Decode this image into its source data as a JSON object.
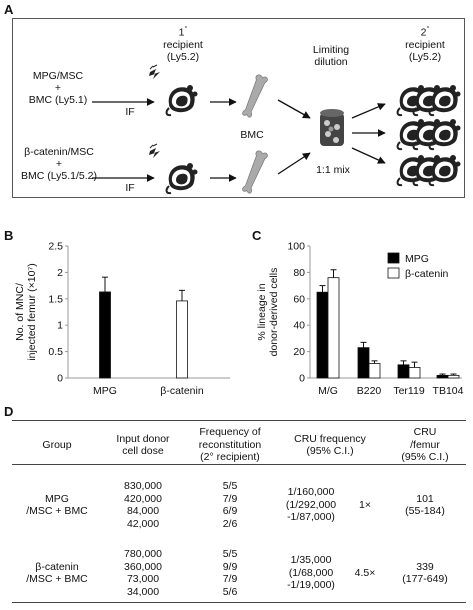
{
  "panels": {
    "a": "A",
    "b": "B",
    "c": "C",
    "d": "D"
  },
  "schematic": {
    "recipient1_title": "1° recipient (Ly5.2)",
    "recipient1_line1": "1",
    "recipient1_sup": "°",
    "recipient1_line2": "recipient",
    "recipient1_line3": "(Ly5.2)",
    "recipient2_line1": "2",
    "recipient2_sup": "°",
    "recipient2_line2": "recipient",
    "recipient2_line3": "(Ly5.2)",
    "limiting_line1": "Limiting",
    "limiting_line2": "dilution",
    "group1_line1": "MPG/MSC",
    "group1_line2": "+",
    "group1_line3": "BMC (Ly5.1)",
    "group2_line1": "β-catenin/MSC",
    "group2_line2": "+",
    "group2_line3": "BMC (Ly5.1/5.2)",
    "if_label": "IF",
    "bmc_label": "BMC",
    "mix_label": "1:1 mix"
  },
  "chart_data": [
    {
      "type": "bar",
      "panel": "B",
      "categories": [
        "MPG",
        "β-catenin"
      ],
      "values": [
        1.63,
        1.46
      ],
      "errors": [
        0.28,
        0.2
      ],
      "colors": [
        "#000000",
        "#ffffff"
      ],
      "ylabel_line1": "No. of MNC/",
      "ylabel_line2": "injected femur (×10⁷)",
      "ylim": [
        0,
        2.5
      ],
      "yticks": [
        "0",
        "0.5",
        "1",
        "1.5",
        "2",
        "2.5"
      ]
    },
    {
      "type": "bar",
      "panel": "C",
      "categories": [
        "M/G",
        "B220",
        "Ter119",
        "TB104"
      ],
      "series": [
        {
          "name": "MPG",
          "color": "#000000",
          "values": [
            65,
            23,
            10,
            2
          ],
          "errors": [
            5,
            4,
            3,
            1
          ]
        },
        {
          "name": "β-catenin",
          "color": "#ffffff",
          "values": [
            76,
            11,
            8,
            2
          ],
          "errors": [
            6,
            2,
            4,
            1
          ]
        }
      ],
      "ylabel_line1": "% lineage in",
      "ylabel_line2": "donor-derived cells",
      "ylim": [
        0,
        100
      ],
      "yticks": [
        "0",
        "20",
        "40",
        "60",
        "80",
        "100"
      ],
      "legend": "top-right"
    }
  ],
  "table": {
    "headers": {
      "group": "Group",
      "dose_line1": "Input donor",
      "dose_line2": "cell dose",
      "freq_line1": "Frequency of",
      "freq_line2": "reconstitution",
      "freq_line3": "(2° recipient)",
      "cru_line1": "CRU frequency",
      "cru_line2": "(95% C.I.)",
      "femur_line1": "CRU",
      "femur_line2": "/femur",
      "femur_line3": "(95% C.I.)"
    },
    "groups": [
      {
        "name_line1": "MPG",
        "name_line2": "/MSC + BMC",
        "doses": [
          "830,000",
          "420,000",
          "84,000",
          "42,000"
        ],
        "freqs": [
          "5/5",
          "7/9",
          "6/9",
          "2/6"
        ],
        "cru_line1": "1/160,000",
        "cru_line2": "(1/292,000",
        "cru_line3": "-1/87,000)",
        "fold": "1×",
        "femur_line1": "101",
        "femur_line2": "(55-184)"
      },
      {
        "name_line1": "β-catenin",
        "name_line2": "/MSC + BMC",
        "doses": [
          "780,000",
          "360,000",
          "73,000",
          "34,000"
        ],
        "freqs": [
          "5/5",
          "9/9",
          "7/9",
          "5/6"
        ],
        "cru_line1": "1/35,000",
        "cru_line2": "(1/68,000",
        "cru_line3": "-1/19,000)",
        "fold": "4.5×",
        "femur_line1": "339",
        "femur_line2": "(177-649)"
      }
    ]
  }
}
